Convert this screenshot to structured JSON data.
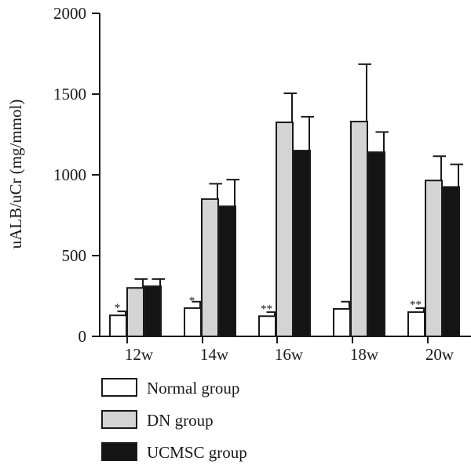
{
  "chart_data": {
    "type": "bar",
    "ylabel": "uALB/uCr (mg/mmol)",
    "xlabel": "",
    "ylim": [
      0,
      2000
    ],
    "yticks": [
      "0",
      "500",
      "1000",
      "1500",
      "2000"
    ],
    "categories": [
      "12w",
      "14w",
      "16w",
      "18w",
      "20w"
    ],
    "series": [
      {
        "name": "Normal group",
        "color": "#ffffff",
        "values": [
          130,
          175,
          125,
          170,
          150
        ],
        "errors": [
          25,
          40,
          25,
          45,
          25
        ]
      },
      {
        "name": "DN group",
        "color": "#d4d4d4",
        "values": [
          300,
          850,
          1325,
          1330,
          965
        ],
        "errors": [
          55,
          95,
          180,
          355,
          150
        ]
      },
      {
        "name": "UCMSC group",
        "color": "#141414",
        "values": [
          310,
          805,
          1150,
          1140,
          925
        ],
        "errors": [
          45,
          165,
          210,
          125,
          140
        ]
      }
    ],
    "annotations": [
      "*",
      "*",
      "**",
      "",
      "**"
    ],
    "grid": false,
    "legend": "bottom"
  }
}
